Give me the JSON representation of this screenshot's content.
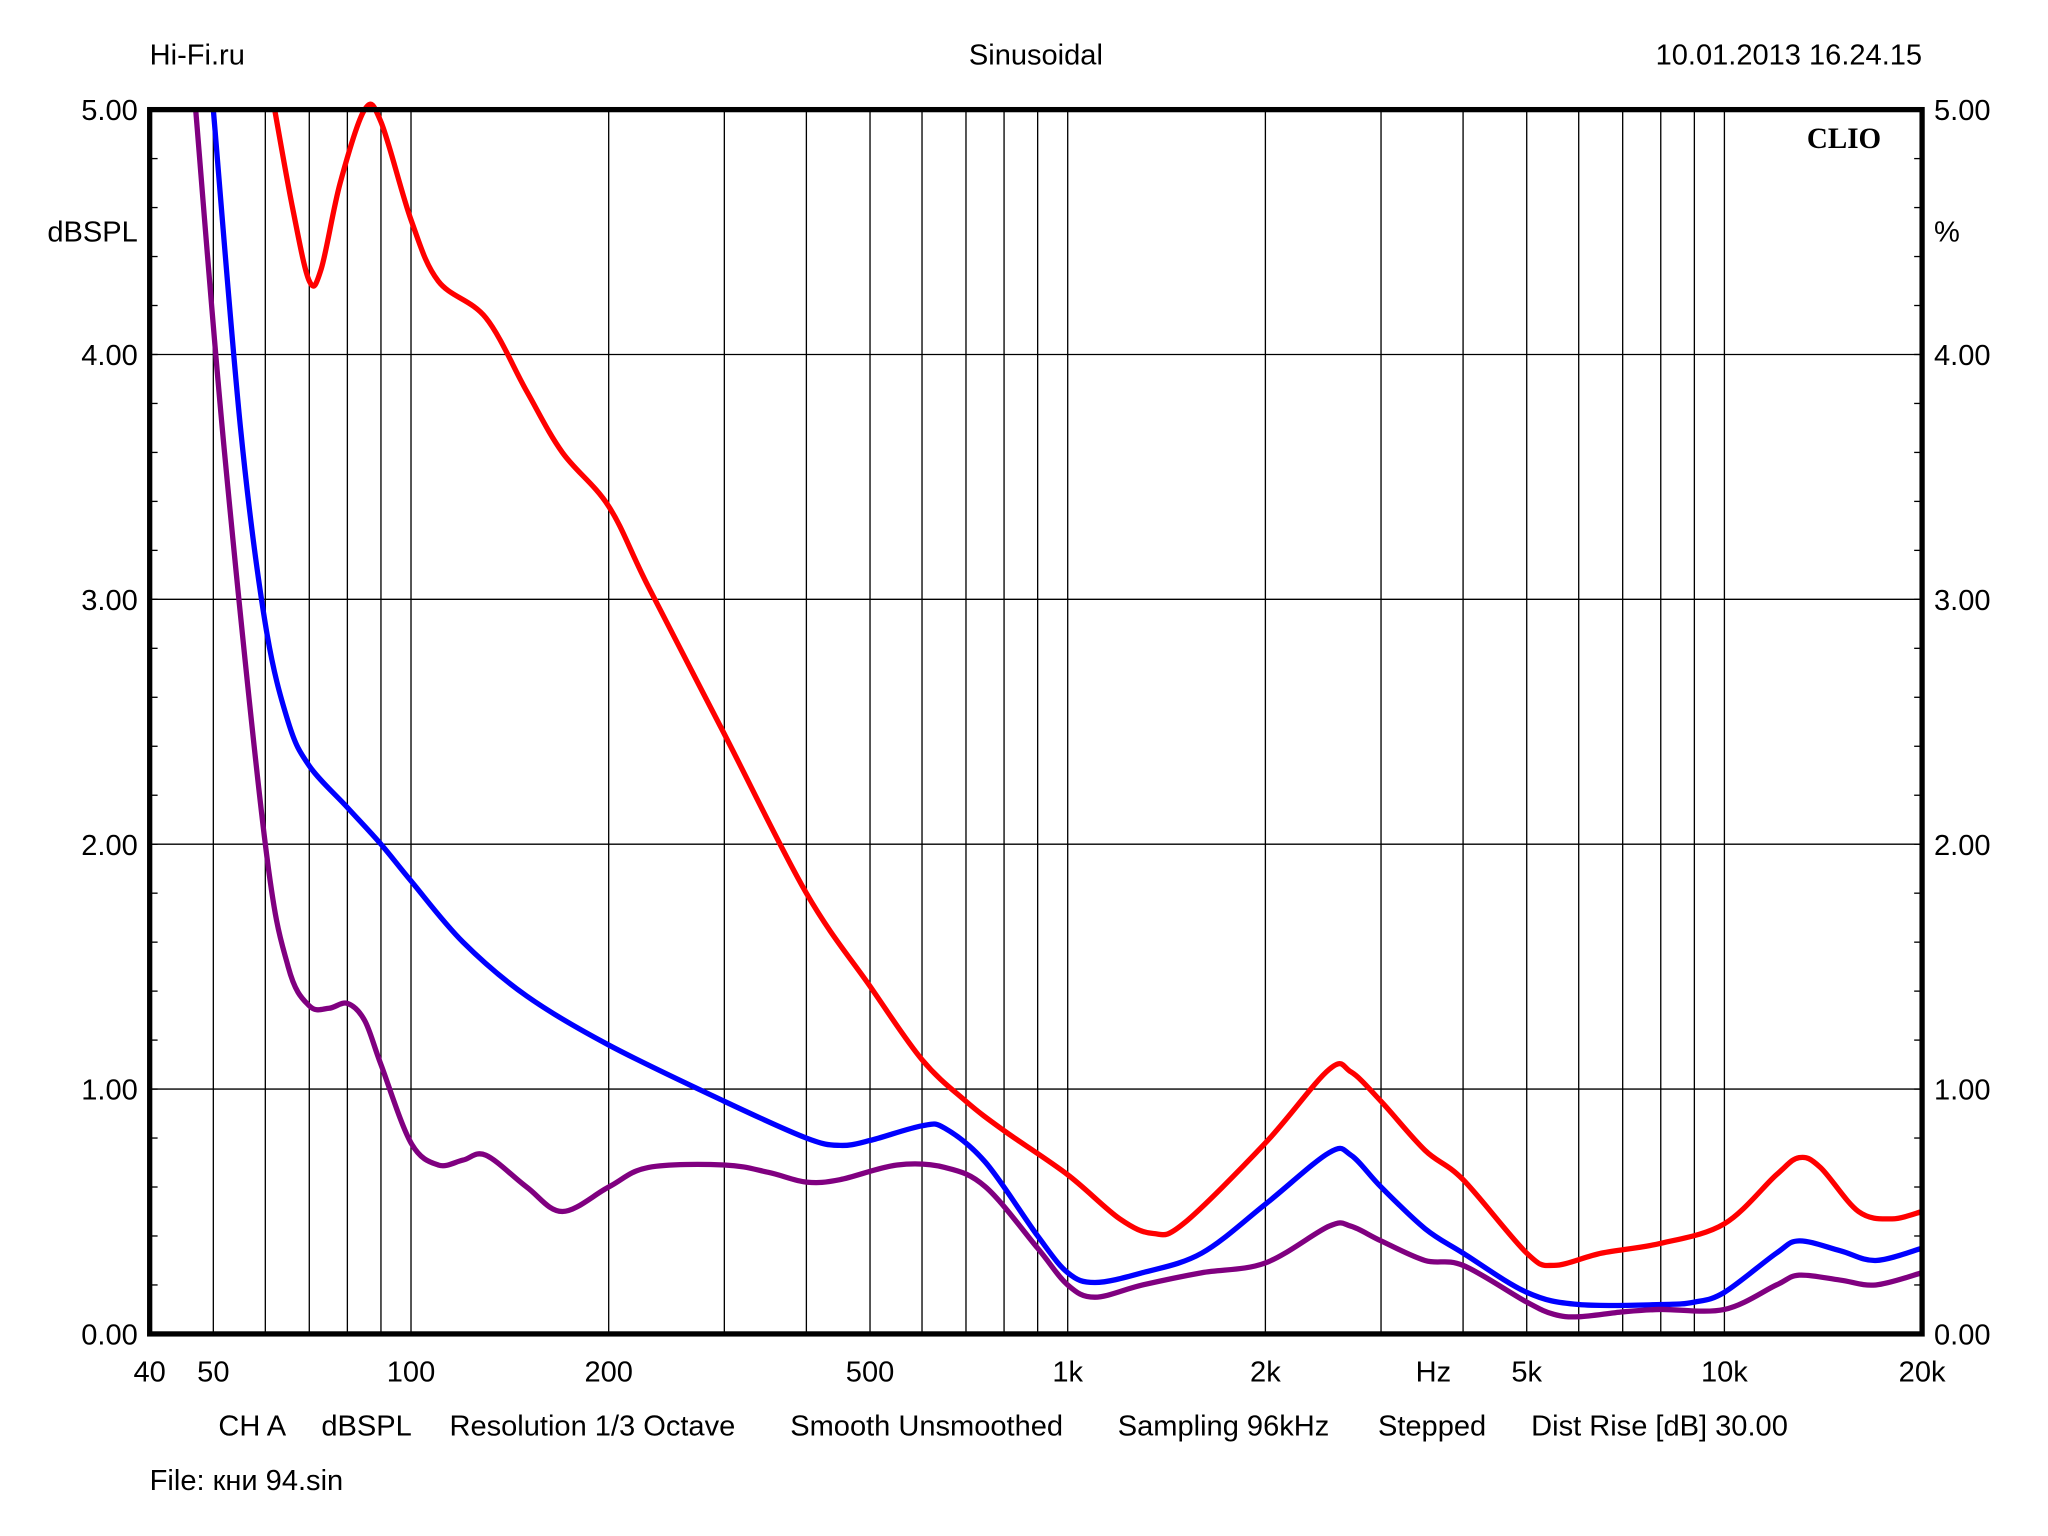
{
  "header": {
    "left": "Hi-Fi.ru",
    "center": "Sinusoidal",
    "right": "10.01.2013 16.24.15"
  },
  "brand": "CLIO",
  "footer": {
    "settings": [
      "CH A",
      "dBSPL",
      "Resolution 1/3 Octave",
      "Smooth Unsmoothed",
      "Sampling 96kHz",
      "Stepped",
      "Dist Rise [dB] 30.00"
    ],
    "file": "File: кни 94.sin"
  },
  "chart_data": {
    "type": "line",
    "title": "Sinusoidal",
    "xlabel": "Hz",
    "ylabel_left": "dBSPL",
    "ylabel_right": "%",
    "xscale": "log",
    "xlim": [
      40,
      20000
    ],
    "ylim": [
      0,
      5
    ],
    "grid": true,
    "x_ticks": [
      {
        "v": 40,
        "t": "40"
      },
      {
        "v": 50,
        "t": "50"
      },
      {
        "v": 100,
        "t": "100"
      },
      {
        "v": 200,
        "t": "200"
      },
      {
        "v": 500,
        "t": "500"
      },
      {
        "v": 1000,
        "t": "1k"
      },
      {
        "v": 2000,
        "t": "2k"
      },
      {
        "v": 5000,
        "t": "5k"
      },
      {
        "v": 10000,
        "t": "10k"
      },
      {
        "v": 20000,
        "t": "20k"
      }
    ],
    "y_ticks": [
      "0.00",
      "1.00",
      "2.00",
      "3.00",
      "4.00",
      "5.00"
    ],
    "series": [
      {
        "name": "red",
        "color": "#ff0000",
        "points": [
          [
            62,
            5
          ],
          [
            66,
            4.6
          ],
          [
            70,
            4.3
          ],
          [
            73,
            4.35
          ],
          [
            78,
            4.7
          ],
          [
            85,
            5.0
          ],
          [
            90,
            4.95
          ],
          [
            100,
            4.55
          ],
          [
            110,
            4.3
          ],
          [
            130,
            4.15
          ],
          [
            150,
            3.85
          ],
          [
            170,
            3.6
          ],
          [
            200,
            3.38
          ],
          [
            230,
            3.05
          ],
          [
            300,
            2.45
          ],
          [
            400,
            1.8
          ],
          [
            500,
            1.42
          ],
          [
            600,
            1.12
          ],
          [
            700,
            0.95
          ],
          [
            800,
            0.83
          ],
          [
            1000,
            0.65
          ],
          [
            1200,
            0.47
          ],
          [
            1350,
            0.41
          ],
          [
            1500,
            0.45
          ],
          [
            2000,
            0.78
          ],
          [
            2500,
            1.08
          ],
          [
            2700,
            1.07
          ],
          [
            3000,
            0.95
          ],
          [
            3500,
            0.75
          ],
          [
            4000,
            0.63
          ],
          [
            5000,
            0.33
          ],
          [
            5500,
            0.28
          ],
          [
            6500,
            0.33
          ],
          [
            8000,
            0.37
          ],
          [
            10000,
            0.45
          ],
          [
            12000,
            0.65
          ],
          [
            13000,
            0.72
          ],
          [
            14000,
            0.68
          ],
          [
            16000,
            0.5
          ],
          [
            18000,
            0.47
          ],
          [
            20000,
            0.5
          ]
        ]
      },
      {
        "name": "blue",
        "color": "#0000ff",
        "points": [
          [
            50,
            5
          ],
          [
            55,
            3.7
          ],
          [
            60,
            2.9
          ],
          [
            65,
            2.5
          ],
          [
            70,
            2.32
          ],
          [
            80,
            2.15
          ],
          [
            90,
            2.0
          ],
          [
            100,
            1.85
          ],
          [
            120,
            1.6
          ],
          [
            150,
            1.38
          ],
          [
            200,
            1.18
          ],
          [
            300,
            0.95
          ],
          [
            400,
            0.8
          ],
          [
            450,
            0.77
          ],
          [
            500,
            0.79
          ],
          [
            600,
            0.85
          ],
          [
            650,
            0.84
          ],
          [
            750,
            0.7
          ],
          [
            900,
            0.4
          ],
          [
            1000,
            0.25
          ],
          [
            1100,
            0.21
          ],
          [
            1300,
            0.25
          ],
          [
            1600,
            0.33
          ],
          [
            2000,
            0.53
          ],
          [
            2500,
            0.74
          ],
          [
            2700,
            0.73
          ],
          [
            3000,
            0.6
          ],
          [
            3500,
            0.43
          ],
          [
            4000,
            0.33
          ],
          [
            5000,
            0.17
          ],
          [
            6000,
            0.12
          ],
          [
            8000,
            0.12
          ],
          [
            9000,
            0.13
          ],
          [
            10000,
            0.17
          ],
          [
            12000,
            0.33
          ],
          [
            13000,
            0.38
          ],
          [
            15000,
            0.34
          ],
          [
            17000,
            0.3
          ],
          [
            20000,
            0.35
          ]
        ]
      },
      {
        "name": "purple",
        "color": "#800080",
        "points": [
          [
            47,
            5
          ],
          [
            52,
            3.6
          ],
          [
            60,
            2.0
          ],
          [
            65,
            1.5
          ],
          [
            70,
            1.34
          ],
          [
            75,
            1.33
          ],
          [
            80,
            1.35
          ],
          [
            85,
            1.28
          ],
          [
            90,
            1.1
          ],
          [
            100,
            0.78
          ],
          [
            110,
            0.69
          ],
          [
            120,
            0.71
          ],
          [
            130,
            0.73
          ],
          [
            150,
            0.6
          ],
          [
            170,
            0.5
          ],
          [
            200,
            0.6
          ],
          [
            230,
            0.68
          ],
          [
            300,
            0.69
          ],
          [
            350,
            0.66
          ],
          [
            400,
            0.62
          ],
          [
            450,
            0.63
          ],
          [
            550,
            0.69
          ],
          [
            650,
            0.68
          ],
          [
            750,
            0.6
          ],
          [
            900,
            0.35
          ],
          [
            1000,
            0.2
          ],
          [
            1100,
            0.15
          ],
          [
            1300,
            0.2
          ],
          [
            1600,
            0.25
          ],
          [
            2000,
            0.29
          ],
          [
            2500,
            0.44
          ],
          [
            2700,
            0.44
          ],
          [
            3000,
            0.38
          ],
          [
            3500,
            0.3
          ],
          [
            4000,
            0.28
          ],
          [
            5000,
            0.13
          ],
          [
            5500,
            0.08
          ],
          [
            6000,
            0.07
          ],
          [
            7000,
            0.09
          ],
          [
            8000,
            0.1
          ],
          [
            10000,
            0.1
          ],
          [
            12000,
            0.2
          ],
          [
            13000,
            0.24
          ],
          [
            15000,
            0.22
          ],
          [
            17000,
            0.2
          ],
          [
            20000,
            0.25
          ]
        ]
      }
    ]
  }
}
